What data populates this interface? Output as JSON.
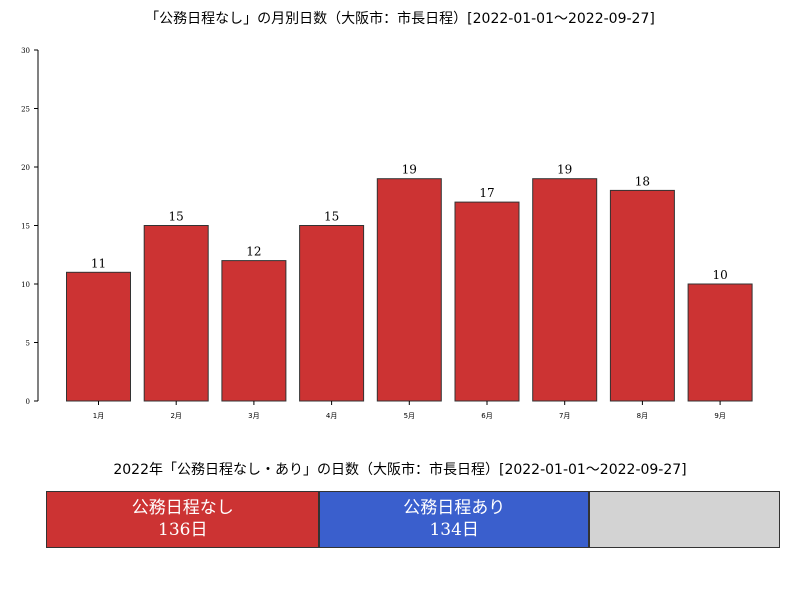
{
  "chart_data": {
    "type": "bar",
    "title": "「公務日程なし」の月別日数（大阪市：市長日程）[2022-01-01～2022-09-27]",
    "categories": [
      "1月",
      "2月",
      "3月",
      "4月",
      "5月",
      "6月",
      "7月",
      "8月",
      "9月"
    ],
    "values": [
      11,
      15,
      12,
      15,
      19,
      17,
      19,
      18,
      10
    ],
    "xlabel": "",
    "ylabel": "",
    "ylim": [
      0,
      30
    ],
    "yticks": [
      0,
      5,
      10,
      15,
      20,
      25,
      30
    ],
    "bar_color": "#cc3333",
    "grid": false
  },
  "summary": {
    "title": "2022年「公務日程なし・あり」の日数（大阪市：市長日程）[2022-01-01～2022-09-27]",
    "segments": [
      {
        "label": "公務日程なし",
        "value_text": "136日",
        "days": 136,
        "color": "#cc3333"
      },
      {
        "label": "公務日程あり",
        "value_text": "134日",
        "days": 134,
        "color": "#3a5fcd"
      },
      {
        "label": "",
        "value_text": "",
        "days": 95,
        "color": "#d3d3d3"
      }
    ]
  }
}
